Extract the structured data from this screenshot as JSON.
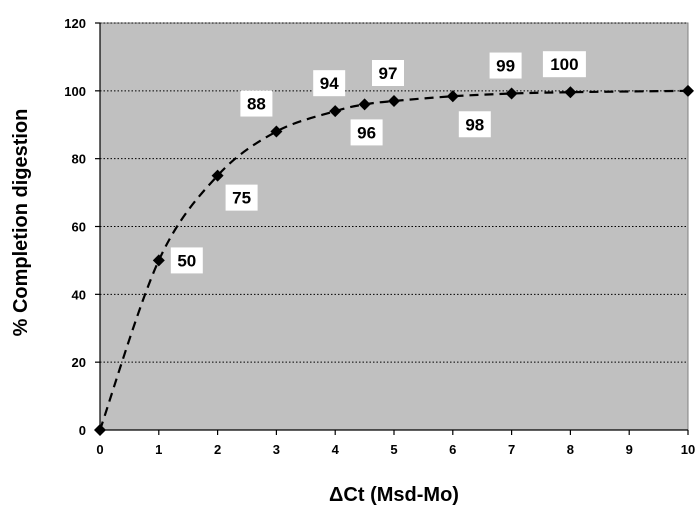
{
  "chart_data": {
    "type": "scatter",
    "title": "",
    "xlabel": "ΔCt (Msd-Mo)",
    "ylabel": "% Completion digestion",
    "xlim": [
      0,
      10
    ],
    "ylim": [
      0,
      120
    ],
    "x_ticks": [
      0,
      1,
      2,
      3,
      4,
      5,
      6,
      7,
      8,
      9,
      10
    ],
    "y_ticks": [
      0,
      20,
      40,
      60,
      80,
      100,
      120
    ],
    "grid": "horizontal dotted",
    "plot_background": "#c0c0c0",
    "series": [
      {
        "marker": "diamond",
        "line_style": "dashed",
        "color": "#000000",
        "x": [
          0,
          1,
          2,
          3,
          4,
          4.5,
          5,
          6,
          7,
          8,
          10
        ],
        "y": [
          0,
          50,
          75,
          88,
          94,
          96,
          97,
          98.4,
          99.2,
          99.6,
          100
        ]
      }
    ],
    "data_labels": [
      {
        "text": "50",
        "x": 1,
        "y": 50,
        "placement": "right"
      },
      {
        "text": "75",
        "x": 2,
        "y": 75,
        "placement": "lower-right"
      },
      {
        "text": "88",
        "x": 3,
        "y": 88,
        "placement": "upper-left"
      },
      {
        "text": "94",
        "x": 4,
        "y": 94,
        "placement": "above"
      },
      {
        "text": "96",
        "x": 4.5,
        "y": 96,
        "placement": "below"
      },
      {
        "text": "97",
        "x": 5,
        "y": 97,
        "placement": "above"
      },
      {
        "text": "98",
        "x": 6,
        "y": 98.4,
        "placement": "below-right"
      },
      {
        "text": "99",
        "x": 7,
        "y": 99.2,
        "placement": "above"
      },
      {
        "text": "100",
        "x": 8,
        "y": 99.6,
        "placement": "above"
      }
    ]
  }
}
